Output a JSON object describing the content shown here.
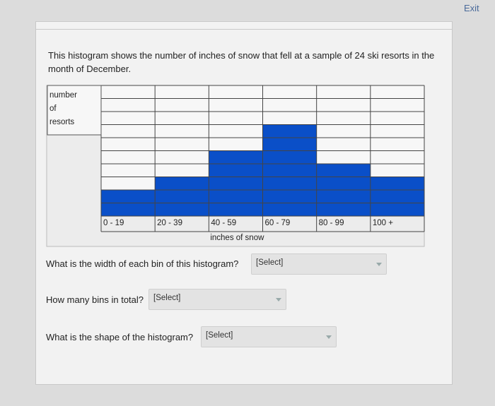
{
  "exit": "Exit",
  "intro": "This histogram shows the number of inches of snow that fell at a sample of 24 ski resorts in the month of December.",
  "histogram": {
    "type": "bar",
    "y_label": "number of resorts",
    "x_label": "inches of snow",
    "categories": [
      "0 - 19",
      "20 - 39",
      "40 - 59",
      "60 - 79",
      "80 - 99",
      "100 +"
    ],
    "values": [
      2,
      3,
      5,
      7,
      4,
      3
    ],
    "color": "#0a4fc8",
    "ylim": [
      0,
      10
    ]
  },
  "questions": [
    {
      "text": "What is the width of each bin of this histogram?",
      "select": "[Select]"
    },
    {
      "text": "How many bins in total?",
      "select": "[Select]"
    },
    {
      "text": "What is the shape of the histogram?",
      "select": "[Select]"
    }
  ]
}
